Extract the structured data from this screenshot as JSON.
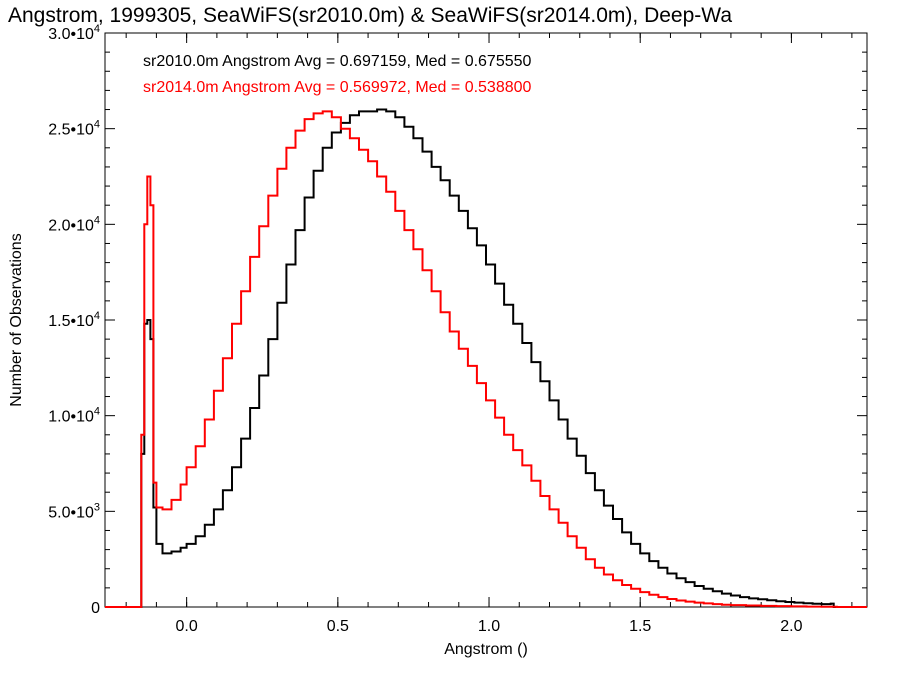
{
  "chart_data": {
    "type": "line",
    "title": "Angstrom, 1999305, SeaWiFS(sr2010.0m) & SeaWiFS(sr2014.0m), Deep-Wa",
    "xlabel": "Angstrom ()",
    "ylabel": "Number of Observations",
    "xlim": [
      -0.27,
      2.25
    ],
    "ylim": [
      0,
      30000
    ],
    "grid": false,
    "legend_position": "top-left",
    "x_ticks": [
      {
        "value": 0.0,
        "label": "0.0"
      },
      {
        "value": 0.5,
        "label": "0.5"
      },
      {
        "value": 1.0,
        "label": "1.0"
      },
      {
        "value": 1.5,
        "label": "1.5"
      },
      {
        "value": 2.0,
        "label": "2.0"
      }
    ],
    "y_ticks": [
      {
        "value": 0,
        "label": "0",
        "exp": ""
      },
      {
        "value": 5000,
        "label": "5.0•10",
        "exp": "3"
      },
      {
        "value": 10000,
        "label": "1.0•10",
        "exp": "4"
      },
      {
        "value": 15000,
        "label": "1.5•10",
        "exp": "4"
      },
      {
        "value": 20000,
        "label": "2.0•10",
        "exp": "4"
      },
      {
        "value": 25000,
        "label": "2.5•10",
        "exp": "4"
      },
      {
        "value": 30000,
        "label": "3.0•10",
        "exp": "4"
      }
    ],
    "series": [
      {
        "name": "sr2010.0m",
        "color": "#000000",
        "legend": "sr2010.0m Angstrom Avg = 0.697159, Med = 0.675550",
        "points": [
          [
            -0.27,
            0
          ],
          [
            -0.155,
            0
          ],
          [
            -0.15,
            8000
          ],
          [
            -0.14,
            14800
          ],
          [
            -0.13,
            15000
          ],
          [
            -0.12,
            14000
          ],
          [
            -0.11,
            5200
          ],
          [
            -0.1,
            3300
          ],
          [
            -0.08,
            2800
          ],
          [
            -0.05,
            2900
          ],
          [
            -0.02,
            3100
          ],
          [
            0.0,
            3300
          ],
          [
            0.03,
            3700
          ],
          [
            0.06,
            4300
          ],
          [
            0.09,
            5100
          ],
          [
            0.12,
            6100
          ],
          [
            0.15,
            7300
          ],
          [
            0.18,
            8800
          ],
          [
            0.21,
            10400
          ],
          [
            0.24,
            12100
          ],
          [
            0.27,
            14000
          ],
          [
            0.3,
            15900
          ],
          [
            0.33,
            17900
          ],
          [
            0.36,
            19700
          ],
          [
            0.39,
            21400
          ],
          [
            0.42,
            22800
          ],
          [
            0.45,
            24000
          ],
          [
            0.48,
            24800
          ],
          [
            0.51,
            25300
          ],
          [
            0.54,
            25700
          ],
          [
            0.57,
            25900
          ],
          [
            0.6,
            25900
          ],
          [
            0.63,
            26000
          ],
          [
            0.66,
            25900
          ],
          [
            0.69,
            25600
          ],
          [
            0.72,
            25100
          ],
          [
            0.75,
            24500
          ],
          [
            0.78,
            23800
          ],
          [
            0.81,
            23000
          ],
          [
            0.84,
            22300
          ],
          [
            0.87,
            21500
          ],
          [
            0.9,
            20700
          ],
          [
            0.93,
            19800
          ],
          [
            0.96,
            18900
          ],
          [
            0.99,
            17900
          ],
          [
            1.02,
            16900
          ],
          [
            1.05,
            15800
          ],
          [
            1.08,
            14800
          ],
          [
            1.11,
            13800
          ],
          [
            1.14,
            12800
          ],
          [
            1.17,
            11800
          ],
          [
            1.2,
            10800
          ],
          [
            1.23,
            9800
          ],
          [
            1.26,
            8800
          ],
          [
            1.29,
            7900
          ],
          [
            1.32,
            7000
          ],
          [
            1.35,
            6100
          ],
          [
            1.38,
            5300
          ],
          [
            1.41,
            4600
          ],
          [
            1.44,
            3900
          ],
          [
            1.47,
            3300
          ],
          [
            1.5,
            2800
          ],
          [
            1.53,
            2400
          ],
          [
            1.56,
            2050
          ],
          [
            1.59,
            1750
          ],
          [
            1.62,
            1500
          ],
          [
            1.65,
            1300
          ],
          [
            1.68,
            1100
          ],
          [
            1.71,
            950
          ],
          [
            1.74,
            820
          ],
          [
            1.77,
            700
          ],
          [
            1.8,
            600
          ],
          [
            1.83,
            520
          ],
          [
            1.86,
            450
          ],
          [
            1.89,
            400
          ],
          [
            1.92,
            350
          ],
          [
            1.95,
            300
          ],
          [
            1.98,
            260
          ],
          [
            2.01,
            230
          ],
          [
            2.04,
            200
          ],
          [
            2.07,
            170
          ],
          [
            2.1,
            150
          ],
          [
            2.13,
            180
          ],
          [
            2.14,
            0
          ],
          [
            2.25,
            0
          ]
        ]
      },
      {
        "name": "sr2014.0m",
        "color": "#ff0000",
        "legend": "sr2014.0m Angstrom Avg = 0.569972, Med = 0.538800",
        "points": [
          [
            -0.27,
            0
          ],
          [
            -0.155,
            0
          ],
          [
            -0.15,
            9000
          ],
          [
            -0.14,
            20000
          ],
          [
            -0.13,
            22500
          ],
          [
            -0.12,
            21000
          ],
          [
            -0.11,
            6500
          ],
          [
            -0.1,
            5200
          ],
          [
            -0.08,
            5100
          ],
          [
            -0.05,
            5600
          ],
          [
            -0.02,
            6400
          ],
          [
            0.0,
            7300
          ],
          [
            0.03,
            8400
          ],
          [
            0.06,
            9800
          ],
          [
            0.09,
            11300
          ],
          [
            0.12,
            13000
          ],
          [
            0.15,
            14800
          ],
          [
            0.18,
            16500
          ],
          [
            0.21,
            18300
          ],
          [
            0.24,
            19900
          ],
          [
            0.27,
            21500
          ],
          [
            0.3,
            22900
          ],
          [
            0.33,
            24000
          ],
          [
            0.36,
            24900
          ],
          [
            0.39,
            25500
          ],
          [
            0.42,
            25800
          ],
          [
            0.45,
            25900
          ],
          [
            0.48,
            25600
          ],
          [
            0.51,
            25000
          ],
          [
            0.54,
            24500
          ],
          [
            0.57,
            23900
          ],
          [
            0.6,
            23300
          ],
          [
            0.63,
            22500
          ],
          [
            0.66,
            21700
          ],
          [
            0.69,
            20700
          ],
          [
            0.72,
            19700
          ],
          [
            0.75,
            18700
          ],
          [
            0.78,
            17600
          ],
          [
            0.81,
            16500
          ],
          [
            0.84,
            15400
          ],
          [
            0.87,
            14400
          ],
          [
            0.9,
            13500
          ],
          [
            0.93,
            12600
          ],
          [
            0.96,
            11700
          ],
          [
            0.99,
            10800
          ],
          [
            1.02,
            9900
          ],
          [
            1.05,
            9000
          ],
          [
            1.08,
            8200
          ],
          [
            1.11,
            7400
          ],
          [
            1.14,
            6600
          ],
          [
            1.17,
            5800
          ],
          [
            1.2,
            5100
          ],
          [
            1.23,
            4400
          ],
          [
            1.26,
            3700
          ],
          [
            1.29,
            3100
          ],
          [
            1.32,
            2500
          ],
          [
            1.35,
            2050
          ],
          [
            1.38,
            1700
          ],
          [
            1.41,
            1400
          ],
          [
            1.44,
            1150
          ],
          [
            1.47,
            950
          ],
          [
            1.5,
            780
          ],
          [
            1.53,
            640
          ],
          [
            1.56,
            520
          ],
          [
            1.59,
            420
          ],
          [
            1.62,
            340
          ],
          [
            1.65,
            280
          ],
          [
            1.68,
            230
          ],
          [
            1.71,
            190
          ],
          [
            1.74,
            150
          ],
          [
            1.77,
            120
          ],
          [
            1.8,
            100
          ],
          [
            1.85,
            80
          ],
          [
            1.9,
            60
          ],
          [
            1.95,
            45
          ],
          [
            2.0,
            30
          ],
          [
            2.05,
            20
          ],
          [
            2.1,
            10
          ],
          [
            2.15,
            0
          ],
          [
            2.25,
            0
          ]
        ]
      }
    ]
  }
}
